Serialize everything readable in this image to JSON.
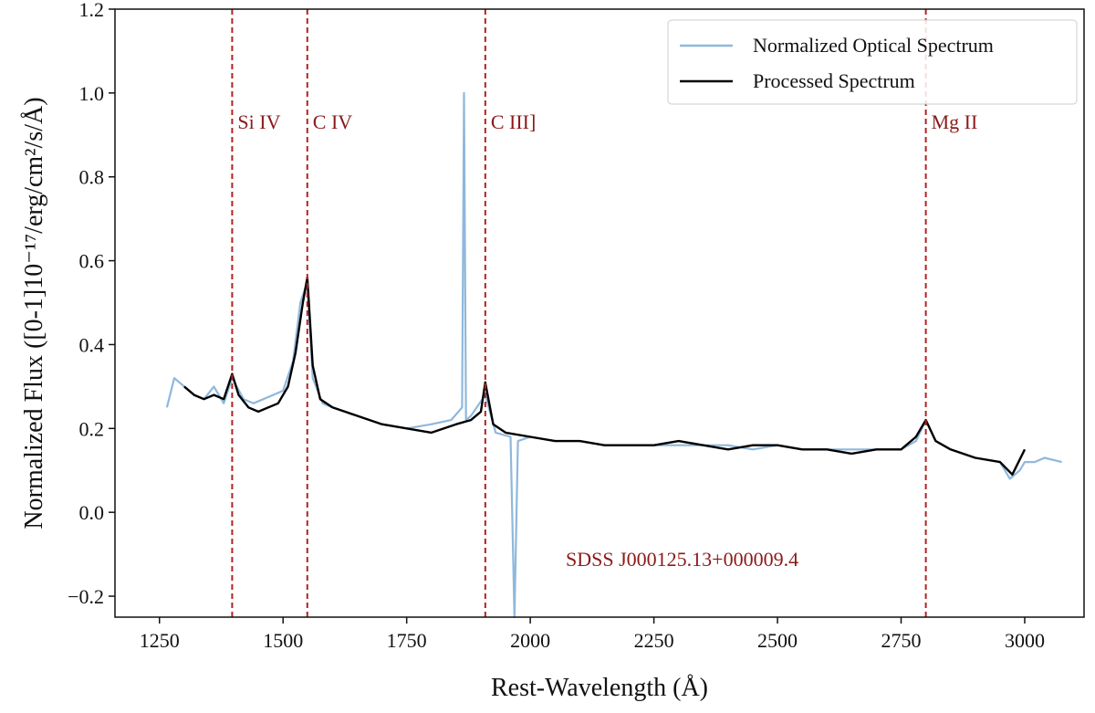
{
  "chart_data": {
    "type": "line",
    "xlabel": "Rest-Wavelength (Å)",
    "ylabel": "Normalized Flux  ([0-1]10⁻¹⁷/erg/cm²/s/Å)",
    "xlim": [
      1160,
      3120
    ],
    "ylim": [
      -0.25,
      1.2
    ],
    "x_ticks": [
      1250,
      1500,
      1750,
      2000,
      2250,
      2500,
      2750,
      3000
    ],
    "y_ticks": [
      -0.2,
      0.0,
      0.2,
      0.4,
      0.6,
      0.8,
      1.0,
      1.2
    ],
    "x_tick_labels": [
      "1250",
      "1500",
      "1750",
      "2000",
      "2250",
      "2500",
      "2750",
      "3000"
    ],
    "y_tick_labels": [
      "−0.2",
      "0.0",
      "0.2",
      "0.4",
      "0.6",
      "0.8",
      "1.0",
      "1.2"
    ],
    "grid": false,
    "legend_position": "top-right",
    "annotation": "SDSS J000125.13+000009.4",
    "annotation_color": "#8b1a1a",
    "emission_lines": [
      {
        "label": "Si IV",
        "x": 1397
      },
      {
        "label": "C IV",
        "x": 1549
      },
      {
        "label": "C III]",
        "x": 1909
      },
      {
        "label": "Mg II",
        "x": 2800
      }
    ],
    "emission_line_color": "#b22222",
    "series": [
      {
        "name": "Normalized Optical Spectrum",
        "color": "#8fb8dc",
        "x": [
          1265,
          1280,
          1300,
          1320,
          1340,
          1360,
          1380,
          1397,
          1420,
          1440,
          1460,
          1480,
          1500,
          1520,
          1535,
          1549,
          1560,
          1580,
          1600,
          1650,
          1700,
          1750,
          1800,
          1840,
          1862,
          1866,
          1870,
          1880,
          1909,
          1930,
          1960,
          1968,
          1975,
          2000,
          2050,
          2100,
          2150,
          2200,
          2250,
          2300,
          2350,
          2400,
          2450,
          2500,
          2550,
          2600,
          2650,
          2700,
          2750,
          2780,
          2800,
          2820,
          2850,
          2900,
          2950,
          2970,
          2990,
          3000,
          3020,
          3040,
          3075
        ],
        "y": [
          0.25,
          0.32,
          0.3,
          0.28,
          0.27,
          0.3,
          0.26,
          0.32,
          0.27,
          0.26,
          0.27,
          0.28,
          0.29,
          0.36,
          0.5,
          0.55,
          0.32,
          0.26,
          0.25,
          0.23,
          0.21,
          0.2,
          0.21,
          0.22,
          0.25,
          1.0,
          0.22,
          0.23,
          0.28,
          0.19,
          0.18,
          -0.25,
          0.17,
          0.18,
          0.17,
          0.17,
          0.16,
          0.16,
          0.16,
          0.16,
          0.16,
          0.16,
          0.15,
          0.16,
          0.15,
          0.15,
          0.15,
          0.15,
          0.15,
          0.17,
          0.22,
          0.17,
          0.15,
          0.13,
          0.12,
          0.08,
          0.1,
          0.12,
          0.12,
          0.13,
          0.12
        ]
      },
      {
        "name": "Processed Spectrum",
        "color": "#000000",
        "x": [
          1300,
          1320,
          1340,
          1360,
          1380,
          1397,
          1410,
          1430,
          1450,
          1470,
          1490,
          1510,
          1525,
          1540,
          1549,
          1560,
          1575,
          1600,
          1650,
          1700,
          1750,
          1800,
          1850,
          1880,
          1900,
          1909,
          1925,
          1950,
          2000,
          2050,
          2100,
          2150,
          2200,
          2250,
          2300,
          2350,
          2400,
          2450,
          2500,
          2550,
          2600,
          2650,
          2700,
          2750,
          2780,
          2800,
          2820,
          2850,
          2900,
          2950,
          2975,
          3000
        ],
        "y": [
          0.3,
          0.28,
          0.27,
          0.28,
          0.27,
          0.33,
          0.28,
          0.25,
          0.24,
          0.25,
          0.26,
          0.3,
          0.38,
          0.5,
          0.56,
          0.35,
          0.27,
          0.25,
          0.23,
          0.21,
          0.2,
          0.19,
          0.21,
          0.22,
          0.24,
          0.31,
          0.21,
          0.19,
          0.18,
          0.17,
          0.17,
          0.16,
          0.16,
          0.16,
          0.17,
          0.16,
          0.15,
          0.16,
          0.16,
          0.15,
          0.15,
          0.14,
          0.15,
          0.15,
          0.18,
          0.22,
          0.17,
          0.15,
          0.13,
          0.12,
          0.09,
          0.15
        ]
      }
    ]
  }
}
